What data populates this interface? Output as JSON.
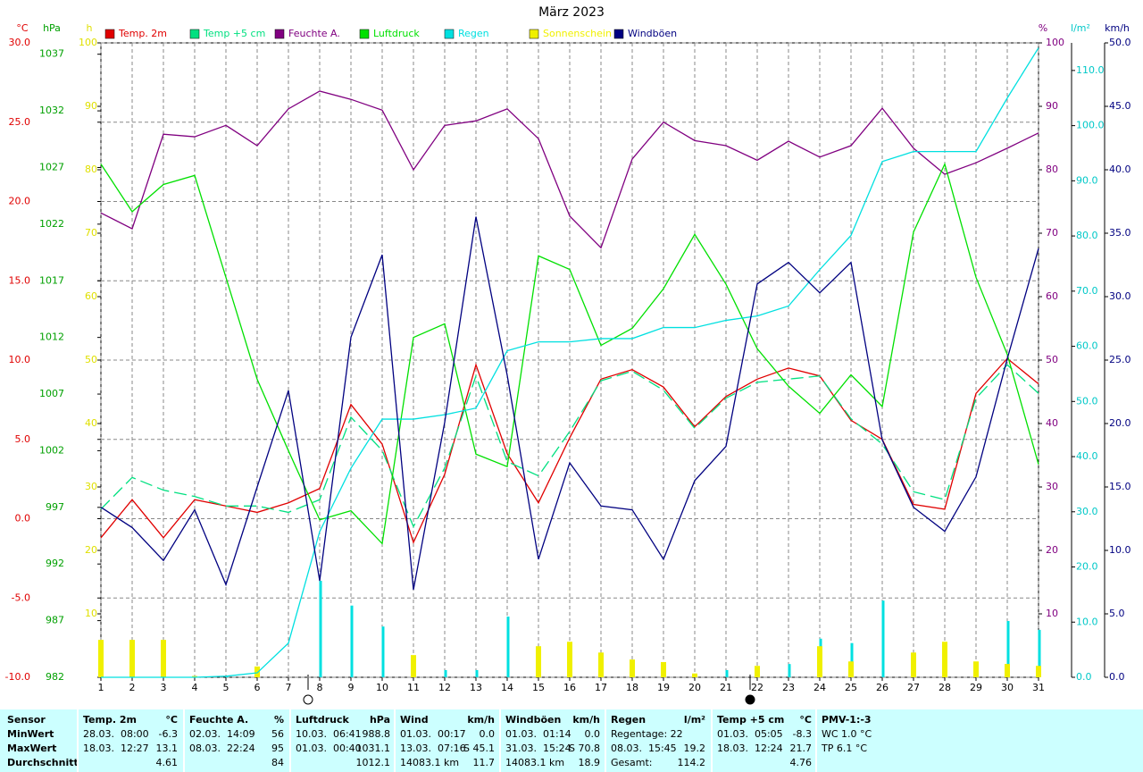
{
  "chart_data": {
    "type": "line",
    "title": "März 2023",
    "x": [
      1,
      2,
      3,
      4,
      5,
      6,
      7,
      8,
      9,
      10,
      11,
      12,
      13,
      14,
      15,
      16,
      17,
      18,
      19,
      20,
      21,
      22,
      23,
      24,
      25,
      26,
      27,
      28,
      29,
      30,
      31
    ],
    "xlim": [
      1,
      31
    ],
    "xticks": [
      1,
      2,
      3,
      4,
      5,
      6,
      7,
      8,
      9,
      10,
      11,
      12,
      13,
      14,
      15,
      16,
      17,
      18,
      19,
      20,
      21,
      22,
      23,
      24,
      25,
      26,
      27,
      28,
      29,
      30,
      31
    ],
    "ylabel": "°C",
    "ycolor": "#e00000",
    "ylim": [
      -10,
      30
    ],
    "yticks": [
      {
        "value": -10,
        "label": "-10.0"
      },
      {
        "value": -5,
        "label": "-5.0"
      },
      {
        "value": 0,
        "label": "0.0"
      },
      {
        "value": 5,
        "label": "5.0"
      },
      {
        "value": 10,
        "label": "10.0"
      },
      {
        "value": 15,
        "label": "15.0"
      },
      {
        "value": 20,
        "label": "20.0"
      },
      {
        "value": 25,
        "label": "25.0"
      },
      {
        "value": 30,
        "label": "30.0"
      }
    ],
    "y2label": "hPa",
    "y2color": "#00a000",
    "y2lim": [
      982,
      1038
    ],
    "y2ticks": [
      982,
      987,
      992,
      997,
      1002,
      1007,
      1012,
      1017,
      1022,
      1027,
      1032,
      1037
    ],
    "y3label": "h",
    "y3color": "#e0e000",
    "y3lim": [
      0,
      100
    ],
    "y3ticks": [
      10,
      20,
      30,
      40,
      50,
      60,
      70,
      80,
      90,
      100
    ],
    "y4label": "%",
    "y4color": "#800080",
    "y4lim": [
      0,
      100
    ],
    "y4ticks": [
      10,
      20,
      30,
      40,
      50,
      60,
      70,
      80,
      90,
      100
    ],
    "y5label": "l/m²",
    "y5color": "#00c8c8",
    "y5lim": [
      0,
      115
    ],
    "y5ticks": [
      {
        "value": 0,
        "label": "0.0"
      },
      {
        "value": 10,
        "label": "10.0"
      },
      {
        "value": 20,
        "label": "20.0"
      },
      {
        "value": 30,
        "label": "30.0"
      },
      {
        "value": 40,
        "label": "40.0"
      },
      {
        "value": 50,
        "label": "50.0"
      },
      {
        "value": 60,
        "label": "60.0"
      },
      {
        "value": 70,
        "label": "70.0"
      },
      {
        "value": 80,
        "label": "80.0"
      },
      {
        "value": 90,
        "label": "90.0"
      },
      {
        "value": 100,
        "label": "100.0"
      },
      {
        "value": 110,
        "label": "110.0"
      }
    ],
    "y6label": "km/h",
    "y6color": "#000080",
    "y6lim": [
      0,
      50
    ],
    "y6ticks": [
      {
        "value": 0,
        "label": "0.0"
      },
      {
        "value": 5,
        "label": "5.0"
      },
      {
        "value": 10,
        "label": "10.0"
      },
      {
        "value": 15,
        "label": "15.0"
      },
      {
        "value": 20,
        "label": "20.0"
      },
      {
        "value": 25,
        "label": "25.0"
      },
      {
        "value": 30,
        "label": "30.0"
      },
      {
        "value": 35,
        "label": "35.0"
      },
      {
        "value": 40,
        "label": "40.0"
      },
      {
        "value": 45,
        "label": "45.0"
      },
      {
        "value": 50,
        "label": "50.0"
      }
    ],
    "grid": true,
    "series": [
      {
        "name": "Temp. 2m",
        "color": "#e00000",
        "axis": "y",
        "kind": "line",
        "values": [
          -1.2,
          1.2,
          -1.2,
          1.2,
          0.8,
          0.4,
          1.0,
          1.9,
          7.2,
          4.7,
          -1.5,
          2.8,
          9.7,
          4.1,
          1.0,
          5.1,
          8.8,
          9.4,
          8.3,
          5.8,
          7.7,
          8.8,
          9.5,
          9.0,
          6.2,
          5.0,
          0.9,
          0.6,
          7.9,
          10.1,
          8.5
        ]
      },
      {
        "name": "Temp +5 cm",
        "color": "#00e080",
        "axis": "y",
        "kind": "line",
        "dash": true,
        "values": [
          0.6,
          2.6,
          1.8,
          1.4,
          0.8,
          0.8,
          0.4,
          1.2,
          6.4,
          4.3,
          -0.5,
          3.2,
          9.0,
          3.6,
          2.7,
          5.5,
          8.7,
          9.3,
          8.1,
          5.7,
          7.6,
          8.6,
          8.8,
          9.0,
          6.3,
          4.7,
          1.7,
          1.2,
          7.6,
          9.7,
          7.9
        ]
      },
      {
        "name": "Feuchte A.",
        "color": "#800080",
        "axis": "y4",
        "kind": "line",
        "values": [
          73.2,
          70.7,
          85.6,
          85.2,
          87.0,
          83.8,
          89.6,
          92.4,
          91.1,
          89.4,
          80.0,
          87.0,
          87.7,
          89.6,
          84.9,
          72.7,
          67.7,
          81.7,
          87.5,
          84.6,
          83.8,
          81.5,
          84.5,
          82.0,
          83.8,
          89.7,
          83.4,
          79.3,
          81.1,
          83.4,
          85.8
        ]
      },
      {
        "name": "Luftdruck",
        "color": "#00e000",
        "axis": "y2",
        "kind": "line",
        "values": [
          1027.3,
          1023.1,
          1025.5,
          1026.3,
          1017.3,
          1008.3,
          1002.0,
          995.9,
          996.7,
          993.8,
          1012.0,
          1013.2,
          1001.7,
          1000.6,
          1019.2,
          1018.0,
          1011.3,
          1012.8,
          1016.3,
          1021.1,
          1016.7,
          1011.0,
          1007.7,
          1005.3,
          1008.7,
          1005.9,
          1021.3,
          1027.3,
          1017.3,
          1010.5,
          1000.8
        ]
      },
      {
        "name": "Regen",
        "color": "#00e0e0",
        "axis": "y5",
        "kind": "line",
        "values": [
          0,
          0,
          0,
          0,
          0.2,
          0.8,
          6.2,
          26.4,
          37.9,
          46.8,
          46.8,
          47.6,
          48.8,
          59.2,
          60.8,
          60.8,
          61.4,
          61.4,
          63.4,
          63.4,
          64.7,
          65.5,
          67.3,
          73.9,
          80.1,
          93.5,
          95.3,
          95.3,
          95.3,
          105.0,
          114.1
        ],
        "bar_values": [
          0,
          0,
          0,
          0,
          0.2,
          0.6,
          0,
          17.5,
          13.0,
          9.2,
          0,
          1.3,
          1.3,
          11.0,
          2.1,
          0,
          0,
          0,
          2.1,
          0,
          1.3,
          0,
          2.4,
          7.0,
          6.2,
          13.9,
          2.1,
          0,
          0,
          10.2,
          8.6
        ]
      },
      {
        "name": "Sonnenschein",
        "color": "#f0f000",
        "axis": "y3",
        "kind": "bar",
        "values": [
          5.9,
          5.9,
          5.9,
          0.2,
          0,
          1.7,
          0,
          0,
          0,
          0,
          3.5,
          0,
          0,
          0,
          4.9,
          5.6,
          3.9,
          2.8,
          2.4,
          0.6,
          0,
          1.8,
          0,
          4.9,
          2.5,
          0,
          3.9,
          5.6,
          2.5,
          2.1,
          1.8
        ]
      },
      {
        "name": "Windböen",
        "color": "#000080",
        "axis": "y6",
        "kind": "line",
        "values": [
          13.4,
          11.8,
          9.2,
          13.2,
          7.3,
          15.0,
          22.6,
          7.6,
          26.8,
          33.3,
          6.9,
          20.1,
          36.3,
          23.8,
          9.3,
          16.9,
          13.5,
          13.2,
          9.3,
          15.5,
          18.2,
          31.0,
          32.7,
          30.3,
          32.7,
          18.7,
          13.4,
          11.5,
          15.8,
          25.1,
          33.8
        ]
      }
    ]
  },
  "summary": [
    {
      "title": "Sensor",
      "rows": [
        {
          "left": "MinWert"
        },
        {
          "left": "MaxWert"
        },
        {
          "left": "Durchschnitt"
        }
      ]
    },
    {
      "title": "Temp. 2m",
      "unit": "°C",
      "rows": [
        {
          "left": "28.03.  08:00",
          "right": "-6.3"
        },
        {
          "left": "18.03.  12:27",
          "right": "13.1"
        },
        {
          "right": "4.61"
        }
      ]
    },
    {
      "title": "Feuchte A.",
      "unit": "%",
      "rows": [
        {
          "left": "02.03.  14:09",
          "right": "56"
        },
        {
          "left": "08.03.  22:24",
          "right": "95"
        },
        {
          "right": "84"
        }
      ]
    },
    {
      "title": "Luftdruck",
      "unit": "hPa",
      "rows": [
        {
          "left": "10.03.  06:41",
          "right": "988.8"
        },
        {
          "left": "01.03.  00:40",
          "right": "1031.1"
        },
        {
          "right": "1012.1"
        }
      ]
    },
    {
      "title": "Wind",
      "unit": "km/h",
      "rows": [
        {
          "left": "01.03.  00:17",
          "right": "0.0"
        },
        {
          "left": "13.03.  07:16",
          "right": "S 45.1"
        },
        {
          "left": "14083.1 km",
          "right": "11.7"
        }
      ]
    },
    {
      "title": "Windböen",
      "unit": "km/h",
      "rows": [
        {
          "left": "01.03.  01:14",
          "right": "0.0"
        },
        {
          "left": "31.03.  15:24",
          "right": "S 70.8"
        },
        {
          "left": "14083.1 km",
          "right": "18.9"
        }
      ]
    },
    {
      "title": "Regen",
      "unit": "l/m²",
      "rows": [
        {
          "left": "Regentage: 22"
        },
        {
          "left": "08.03.  15:45",
          "right": "19.2"
        },
        {
          "left": "Gesamt:",
          "right": "114.2"
        }
      ]
    },
    {
      "title": "Temp +5 cm",
      "unit": "°C",
      "rows": [
        {
          "left": "01.03.  05:05",
          "right": "-8.3"
        },
        {
          "left": "18.03.  12:24",
          "right": "21.7"
        },
        {
          "right": "4.76"
        }
      ]
    },
    {
      "title": "PMV-1:-3",
      "rows": [
        {
          "left": "WC 1.0 °C"
        },
        {
          "left": "TP 6.1 °C"
        }
      ]
    }
  ]
}
